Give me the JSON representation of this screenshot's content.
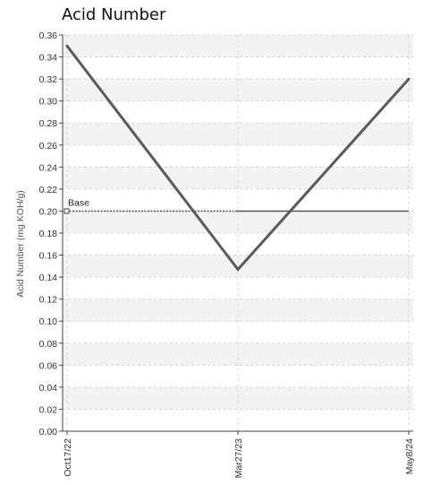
{
  "chart_data": {
    "type": "line",
    "title": "Acid Number",
    "ylabel": "Acid Number (mg KOH/g)",
    "xlabel": "",
    "categories": [
      "Oct17/22",
      "Mar27/23",
      "May8/24"
    ],
    "ylim": [
      0,
      0.36
    ],
    "y_ticks": [
      "0.00",
      "0.02",
      "0.04",
      "0.06",
      "0.08",
      "0.10",
      "0.12",
      "0.14",
      "0.16",
      "0.18",
      "0.20",
      "0.22",
      "0.24",
      "0.26",
      "0.28",
      "0.30",
      "0.32",
      "0.34",
      "0.36"
    ],
    "series": [
      {
        "values": [
          0.35,
          0.147,
          0.32
        ],
        "color": "#5a5a5a"
      }
    ],
    "baseline": {
      "label": "Base",
      "value": 0.2,
      "color": "#555555"
    },
    "grid": true,
    "band_colors": [
      "#f3f3f3",
      "#ffffff"
    ]
  }
}
